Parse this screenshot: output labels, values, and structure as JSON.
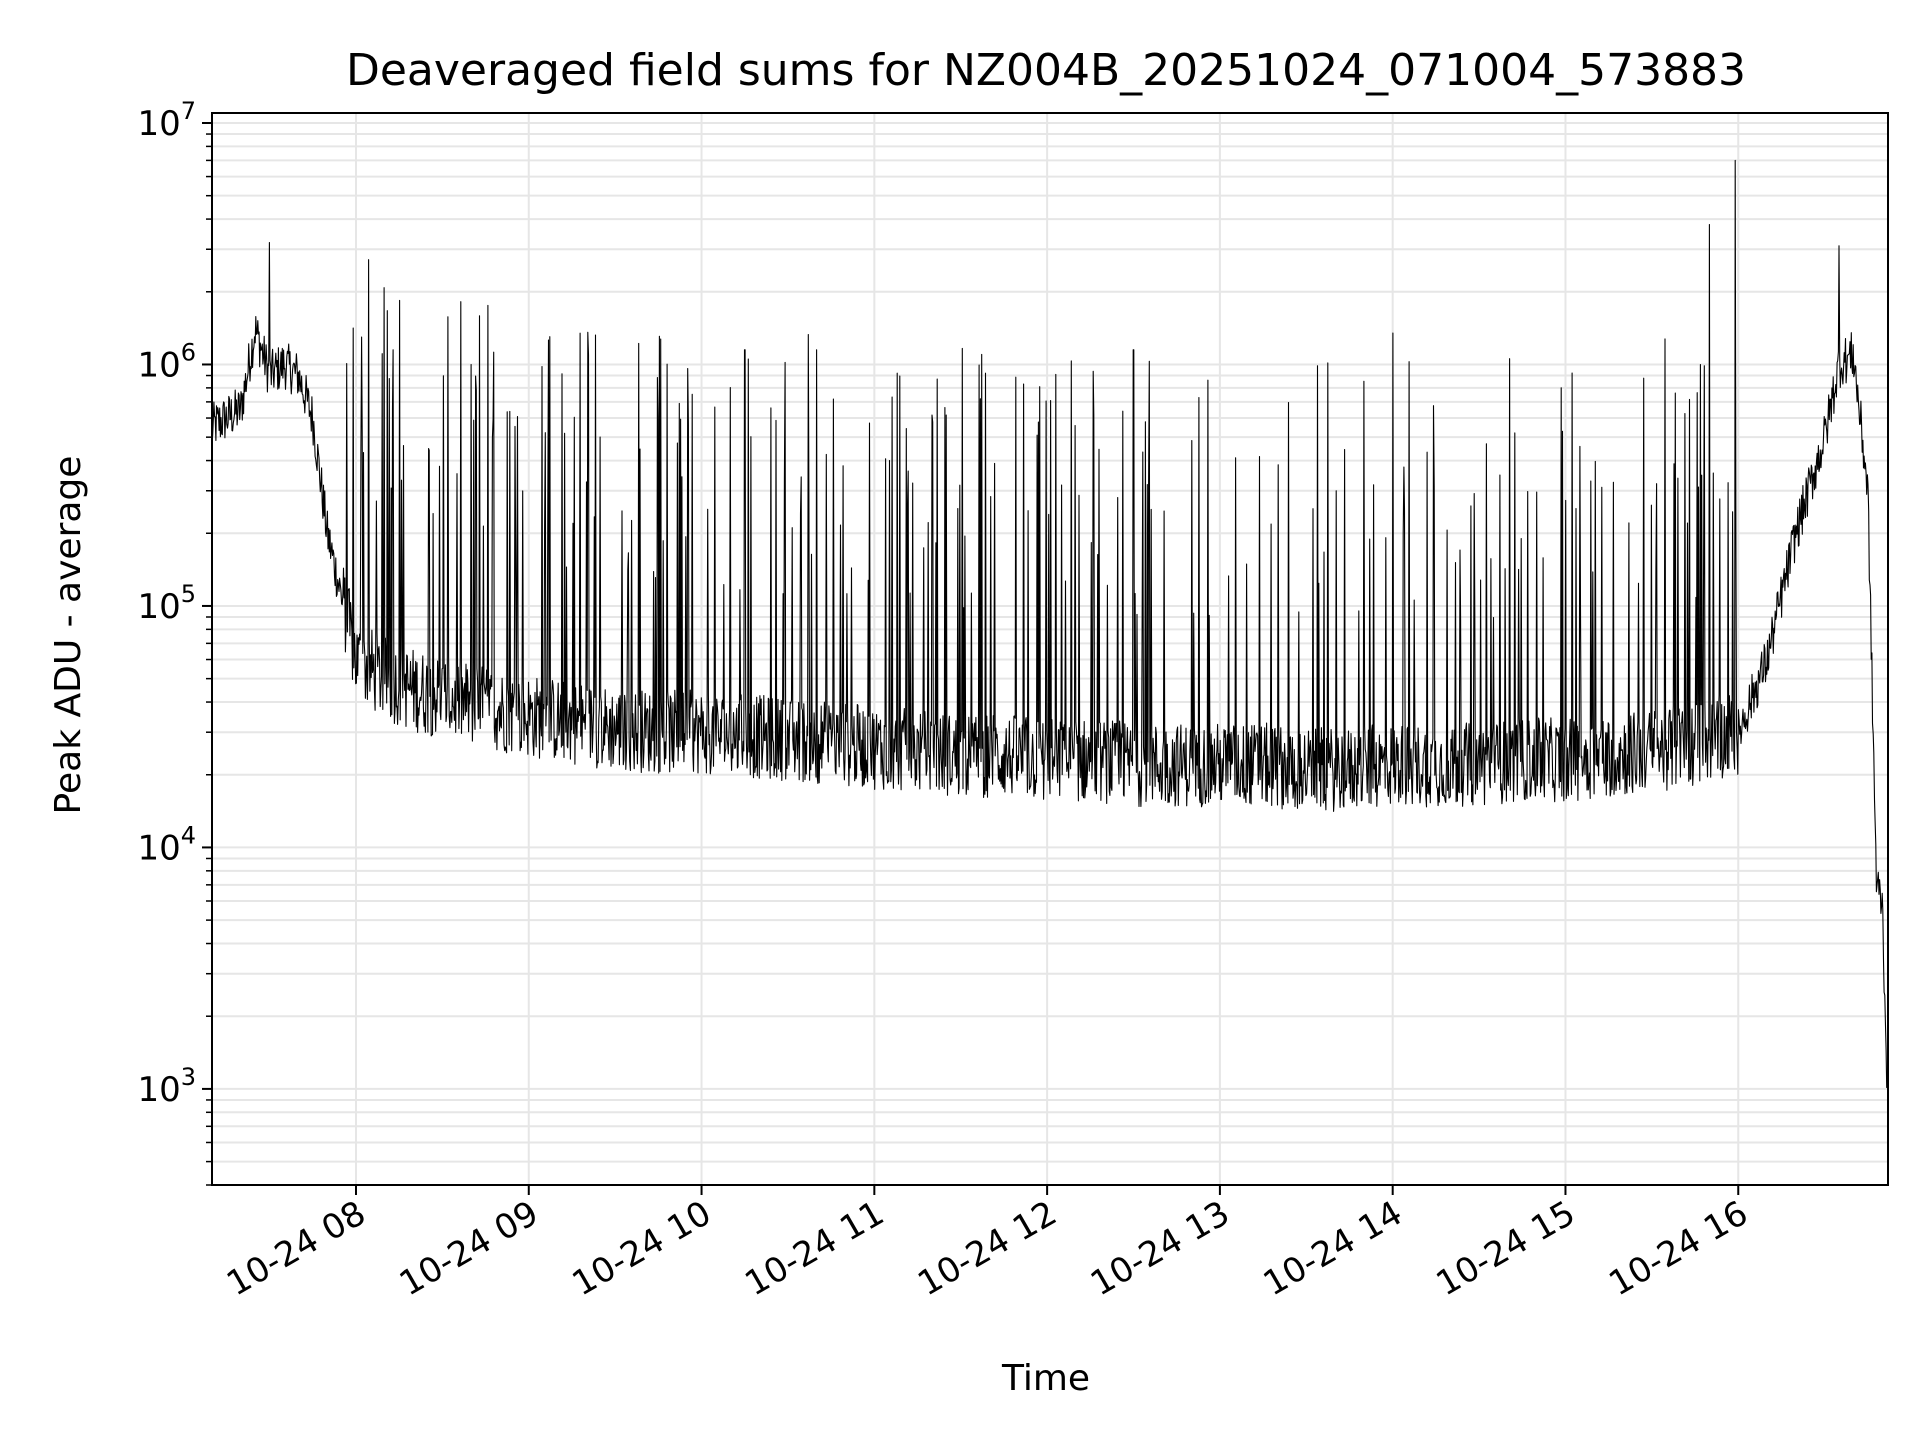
{
  "chart_data": {
    "type": "line",
    "title": "Deaveraged field sums for NZ004B_20251024_071004_573883",
    "xlabel": "Time",
    "ylabel": "Peak ADU - average",
    "yscale": "log",
    "ylim": [
      400,
      11000000
    ],
    "xlim": [
      "2025-10-24T07:10:00",
      "2025-10-24T16:52:00"
    ],
    "grid": true,
    "legend": "none",
    "line_color": "#000000",
    "y_tick_labels": [
      {
        "base": "10",
        "exp": "3",
        "value": 1000
      },
      {
        "base": "10",
        "exp": "4",
        "value": 10000
      },
      {
        "base": "10",
        "exp": "5",
        "value": 100000
      },
      {
        "base": "10",
        "exp": "6",
        "value": 1000000
      },
      {
        "base": "10",
        "exp": "7",
        "value": 10000000
      }
    ],
    "x_tick_labels": [
      {
        "label": "10-24 08",
        "time": "2025-10-24T08:00:00"
      },
      {
        "label": "10-24 09",
        "time": "2025-10-24T09:00:00"
      },
      {
        "label": "10-24 10",
        "time": "2025-10-24T10:00:00"
      },
      {
        "label": "10-24 11",
        "time": "2025-10-24T11:00:00"
      },
      {
        "label": "10-24 12",
        "time": "2025-10-24T12:00:00"
      },
      {
        "label": "10-24 13",
        "time": "2025-10-24T13:00:00"
      },
      {
        "label": "10-24 14",
        "time": "2025-10-24T14:00:00"
      },
      {
        "label": "10-24 15",
        "time": "2025-10-24T15:00:00"
      },
      {
        "label": "10-24 16",
        "time": "2025-10-24T16:00:00"
      }
    ],
    "series": [
      {
        "x": [
          "2025-10-24T07:10:00",
          "2025-10-24T07:15:00",
          "2025-10-24T07:20:00",
          "2025-10-24T07:25:00",
          "2025-10-24T07:30:00",
          "2025-10-24T07:35:00",
          "2025-10-24T07:40:00",
          "2025-10-24T07:45:00",
          "2025-10-24T07:50:00",
          "2025-10-24T08:00:00",
          "2025-10-24T08:10:00",
          "2025-10-24T08:20:00",
          "2025-10-24T08:30:00",
          "2025-10-24T08:45:00",
          "2025-10-24T09:00:00",
          "2025-10-24T09:15:00",
          "2025-10-24T09:30:00",
          "2025-10-24T09:45:00",
          "2025-10-24T10:00:00",
          "2025-10-24T10:15:00",
          "2025-10-24T10:30:00",
          "2025-10-24T10:45:00",
          "2025-10-24T11:00:00",
          "2025-10-24T11:15:00",
          "2025-10-24T11:30:00",
          "2025-10-24T11:45:00",
          "2025-10-24T12:00:00",
          "2025-10-24T12:15:00",
          "2025-10-24T12:30:00",
          "2025-10-24T12:45:00",
          "2025-10-24T13:00:00",
          "2025-10-24T13:15:00",
          "2025-10-24T13:30:00",
          "2025-10-24T13:45:00",
          "2025-10-24T14:00:00",
          "2025-10-24T14:15:00",
          "2025-10-24T14:30:00",
          "2025-10-24T14:45:00",
          "2025-10-24T15:00:00",
          "2025-10-24T15:15:00",
          "2025-10-24T15:30:00",
          "2025-10-24T15:45:00",
          "2025-10-24T16:00:00",
          "2025-10-24T16:10:00",
          "2025-10-24T16:20:00",
          "2025-10-24T16:30:00",
          "2025-10-24T16:35:00",
          "2025-10-24T16:40:00",
          "2025-10-24T16:45:00",
          "2025-10-24T16:48:00",
          "2025-10-24T16:50:00",
          "2025-10-24T16:52:00"
        ],
        "base": [
          550000,
          600000,
          650000,
          1400000,
          900000,
          1000000,
          900000,
          600000,
          200000,
          60000,
          50000,
          45000,
          42000,
          38000,
          35000,
          33000,
          31000,
          30000,
          30000,
          29000,
          28000,
          27000,
          26000,
          25000,
          24000,
          24000,
          23000,
          23000,
          22000,
          22000,
          22000,
          22000,
          21000,
          21000,
          22000,
          22000,
          22000,
          23000,
          23000,
          24000,
          25000,
          27000,
          30000,
          60000,
          200000,
          500000,
          1000000,
          1100000,
          300000,
          7000,
          6000,
          800
        ],
        "peaks": [
          {
            "x": "2025-10-24T07:30:00",
            "y": 3200000
          },
          {
            "x": "2025-10-24T08:02:00",
            "y": 1300000
          },
          {
            "x": "2025-10-24T08:40:00",
            "y": 1000000
          },
          {
            "x": "2025-10-24T10:15:00",
            "y": 1150000
          },
          {
            "x": "2025-10-24T10:40:00",
            "y": 1150000
          },
          {
            "x": "2025-10-24T12:30:00",
            "y": 1150000
          },
          {
            "x": "2025-10-24T14:00:00",
            "y": 1350000
          },
          {
            "x": "2025-10-24T15:50:00",
            "y": 3800000
          },
          {
            "x": "2025-10-24T15:59:00",
            "y": 7000000
          },
          {
            "x": "2025-10-24T16:35:00",
            "y": 3100000
          }
        ]
      }
    ]
  }
}
